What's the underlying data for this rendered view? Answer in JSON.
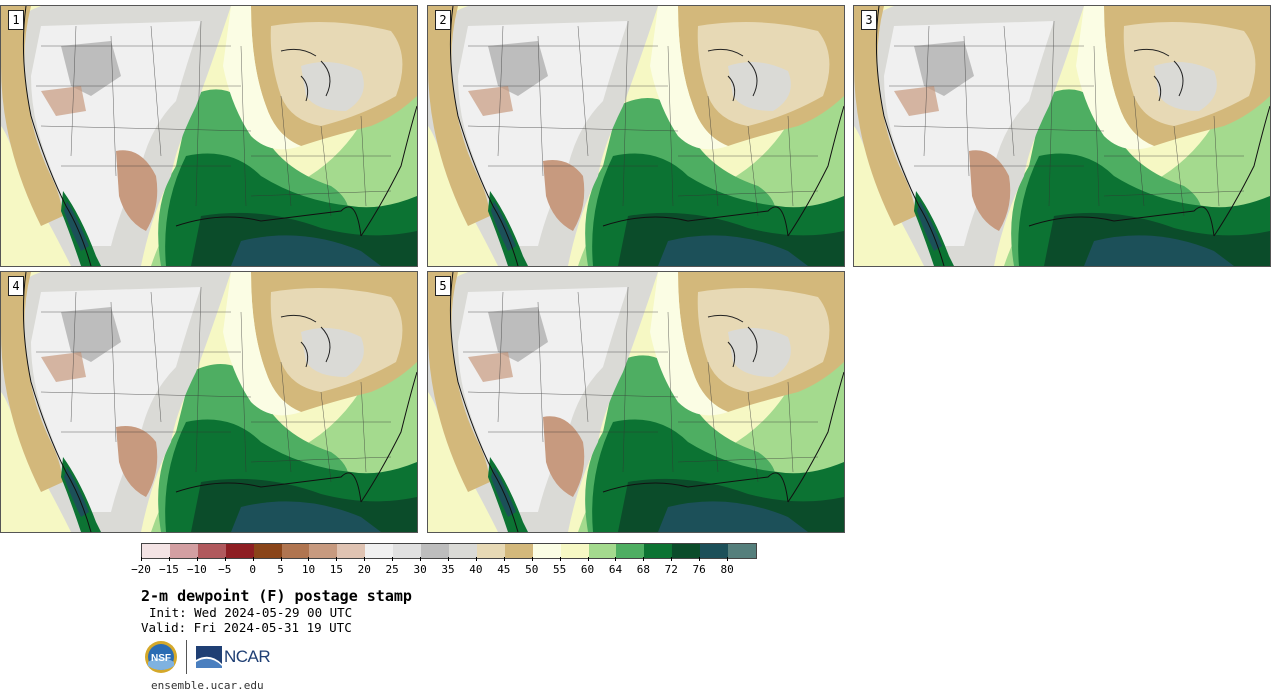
{
  "panels": [
    {
      "label": "1",
      "variant": 0
    },
    {
      "label": "2",
      "variant": 1
    },
    {
      "label": "3",
      "variant": 2
    },
    {
      "label": "4",
      "variant": 3
    },
    {
      "label": "5",
      "variant": 4
    }
  ],
  "colorbar": {
    "colors": [
      "#f3e3e4",
      "#d39fa2",
      "#b0595d",
      "#8e1e23",
      "#8a4519",
      "#b07550",
      "#c79a7f",
      "#dfc3b2",
      "#f0f0f0",
      "#e0e0e0",
      "#bdbdbd",
      "#dadad6",
      "#e7d9b5",
      "#d3b87b",
      "#fbfde4",
      "#f6f8c4",
      "#a4da8e",
      "#4eae62",
      "#0c7333",
      "#0b4c2a",
      "#1c5059",
      "#557f7c"
    ],
    "tick_labels": [
      "−20",
      "−15",
      "−10",
      "−5",
      "0",
      "5",
      "10",
      "15",
      "20",
      "25",
      "30",
      "35",
      "40",
      "45",
      "50",
      "55",
      "60",
      "64",
      "68",
      "72",
      "76",
      "80"
    ]
  },
  "title": "2-m dewpoint (F) postage stamp",
  "init": "Init: Wed 2024-05-29 00 UTC",
  "valid": "Valid: Fri 2024-05-31 19 UTC",
  "logos": {
    "nsf": "NSF",
    "ncar": "NCAR"
  },
  "site": "ensemble.ucar.edu"
}
